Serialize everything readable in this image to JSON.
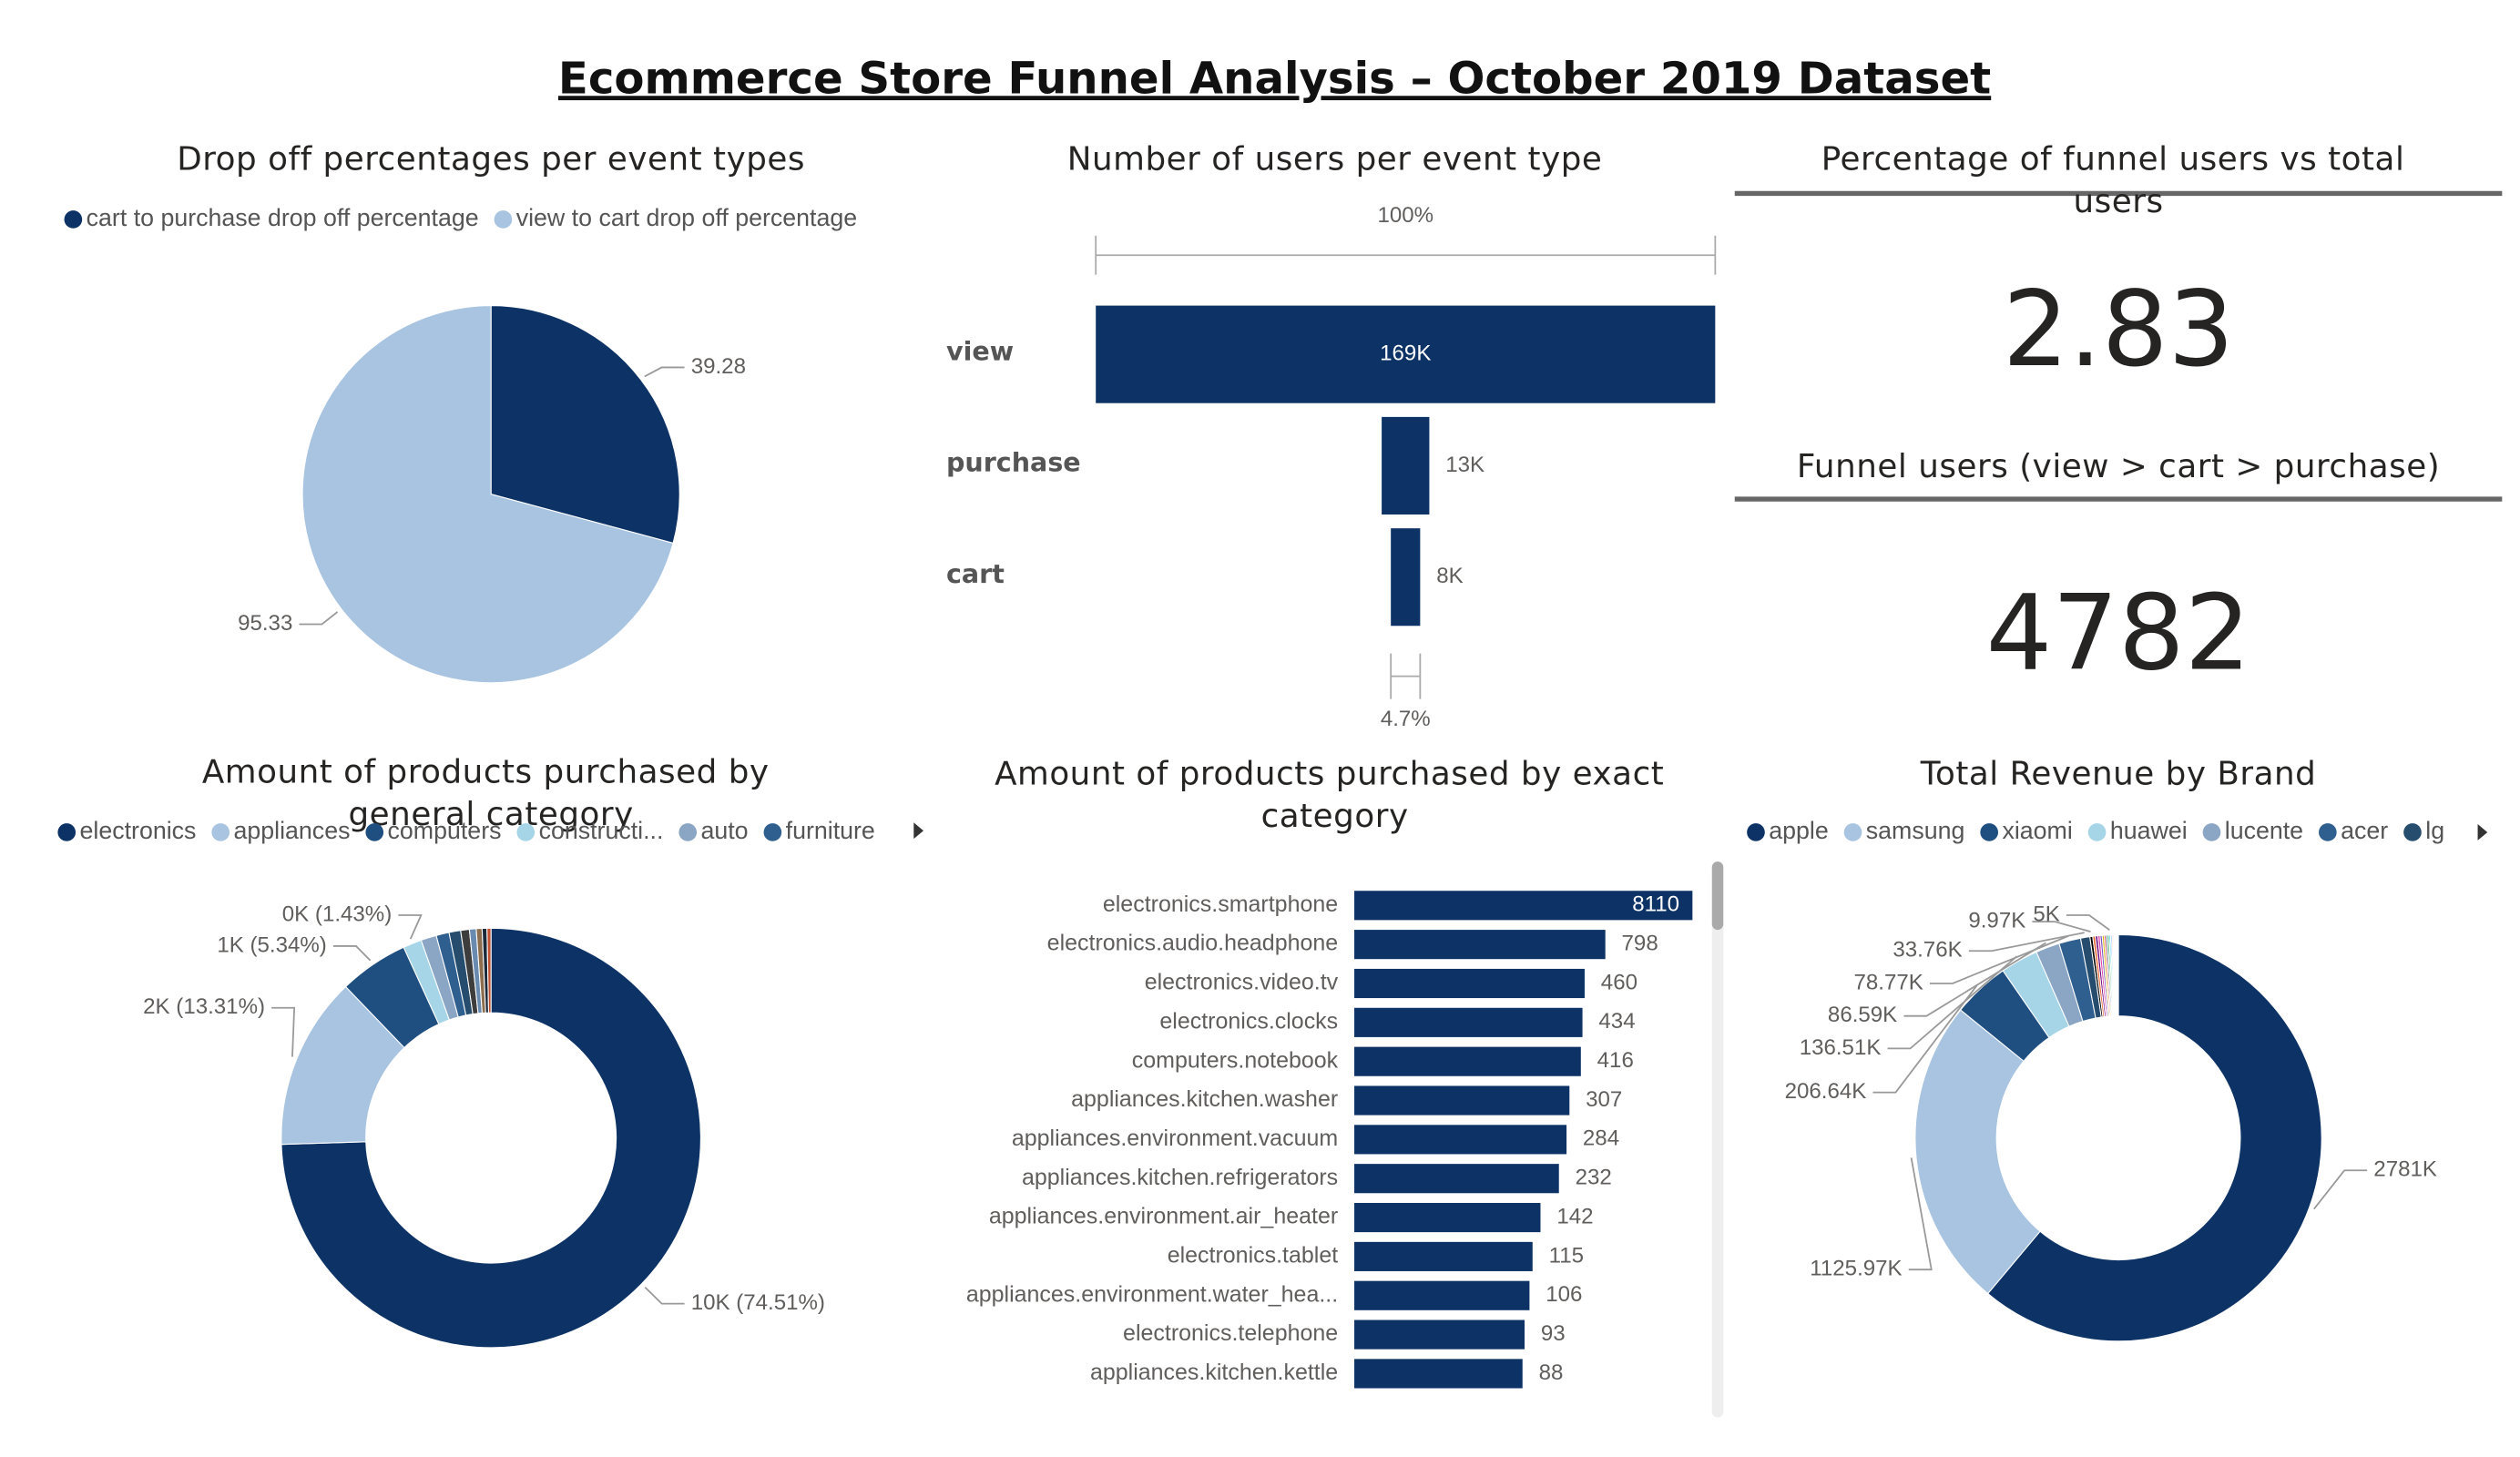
{
  "title": "Ecommerce Store Funnel Analysis – October 2019 Dataset",
  "chart_data": [
    {
      "type": "pie",
      "title": "Drop off percentages per event types",
      "categories": [
        "cart to purchase drop off percentage",
        "view to cart drop off percentage"
      ],
      "values": [
        39.28,
        95.33
      ],
      "colors": [
        "#0d3366",
        "#a8c4e0"
      ],
      "legend": "top"
    },
    {
      "type": "funnel",
      "title": "Number of users per event type",
      "categories": [
        "view",
        "purchase",
        "cart"
      ],
      "values": [
        169000,
        13000,
        8000
      ],
      "value_labels": [
        "169K",
        "13K",
        "8K"
      ],
      "color": "#0d3366",
      "annotations": [
        "100%",
        "4.7%"
      ]
    },
    {
      "type": "card",
      "title": "Percentage of funnel users vs total users",
      "value": 2.83
    },
    {
      "type": "card",
      "title": "Funnel users (view > cart > purchase)",
      "value": 4782
    },
    {
      "type": "donut",
      "title": "Amount of products purchased by general category",
      "categories": [
        "electronics",
        "appliances",
        "computers",
        "constructi...",
        "auto",
        "furniture",
        null,
        null,
        null,
        null,
        null,
        null
      ],
      "values": [
        10000,
        1786,
        717,
        192,
        161,
        134,
        120,
        90,
        70,
        60,
        50,
        41
      ],
      "value_labels": [
        "10K (74.51%)",
        "2K (13.31%)",
        "1K (5.34%)",
        "0K (1.43%)",
        null,
        null,
        null,
        null,
        null,
        null,
        null,
        null
      ],
      "colors": [
        "#0d3366",
        "#a8c4e0",
        "#1f4e80",
        "#a6d5e8",
        "#8aa6c4",
        "#2f5f8f",
        "#264d6e",
        "#3d3d3d",
        "#6a8bb0",
        "#8c6e4f",
        "#1b2a3a",
        "#c05030"
      ],
      "legend": "top"
    },
    {
      "type": "hbar",
      "title": "Amount of products purchased by exact category",
      "categories": [
        "electronics.smartphone",
        "electronics.audio.headphone",
        "electronics.video.tv",
        "electronics.clocks",
        "computers.notebook",
        "appliances.kitchen.washer",
        "appliances.environment.vacuum",
        "appliances.kitchen.refrigerators",
        "appliances.environment.air_heater",
        "electronics.tablet",
        "appliances.environment.water_hea...",
        "electronics.telephone",
        "appliances.kitchen.kettle"
      ],
      "values": [
        8110,
        798,
        460,
        434,
        416,
        307,
        284,
        232,
        142,
        115,
        106,
        93,
        88
      ],
      "color": "#0d3366",
      "log": true,
      "xlim": [
        1,
        8110
      ]
    },
    {
      "type": "donut",
      "title": "Total Revenue by Brand",
      "categories": [
        "apple",
        "samsung",
        "xiaomi",
        "huawei",
        "lucente",
        "acer",
        "lg",
        null,
        null,
        null,
        null,
        null,
        null,
        null,
        null,
        null,
        null,
        null,
        null,
        null,
        null,
        null,
        null,
        null,
        null,
        null,
        null
      ],
      "values": [
        2781000,
        1125970,
        206640,
        136510,
        86590,
        78770,
        33760,
        9970,
        9500,
        8800,
        8200,
        7600,
        7000,
        6500,
        6000,
        5500,
        5000,
        4600,
        4200,
        3800,
        3400,
        3000,
        2600,
        2200,
        1800,
        1400,
        1000
      ],
      "value_labels": [
        "2781K",
        "1125.97K",
        "206.64K",
        "136.51K",
        "86.59K",
        "78.77K",
        "33.76K",
        "9.97K",
        null,
        null,
        null,
        null,
        null,
        null,
        null,
        null,
        "5K",
        null,
        null,
        null,
        null,
        null,
        null,
        null,
        null,
        null,
        null
      ],
      "colors": [
        "#0d3366",
        "#a8c4e0",
        "#1f4e80",
        "#a6d5e8",
        "#8aa6c4",
        "#2f5f8f",
        "#264d6e",
        "#000000",
        "#e66c37",
        "#6b007b",
        "#e044a7",
        "#744ec2",
        "#d9b300",
        "#d64550",
        "#197278",
        "#1aab40",
        "#15c6f4",
        "#4092ff",
        "#ffa058",
        "#be5dc9",
        "#f472d0",
        "#b5a1ff",
        "#c4a200",
        "#ff8080",
        "#72c2c8",
        "#74e08c",
        "#a0d8f0"
      ],
      "legend": "top"
    }
  ]
}
